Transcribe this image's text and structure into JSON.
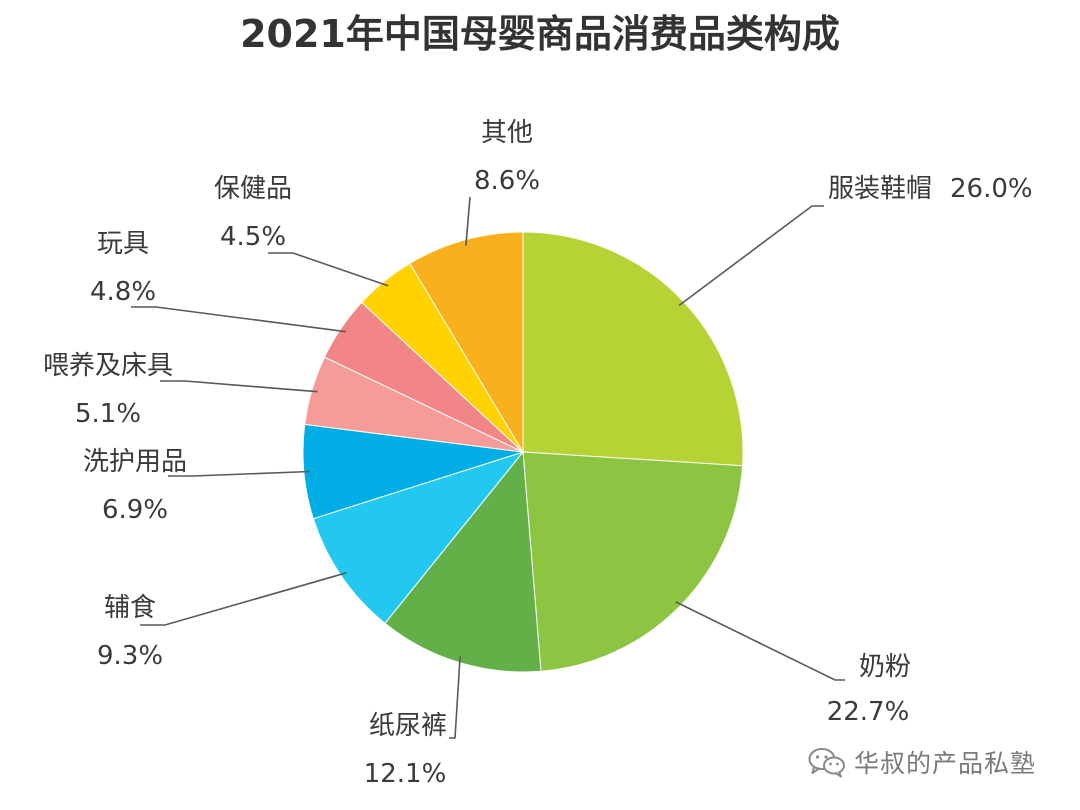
{
  "chart_data": {
    "type": "pie",
    "title": "2021年中国母婴商品消费品类构成",
    "unit": "%",
    "slices": [
      {
        "label": "服装鞋帽",
        "value": 26.0,
        "display": "26.0%",
        "color": "#b5d334"
      },
      {
        "label": "奶粉",
        "value": 22.7,
        "display": "22.7%",
        "color": "#8dc542"
      },
      {
        "label": "纸尿裤",
        "value": 12.1,
        "display": "12.1%",
        "color": "#62b047"
      },
      {
        "label": "辅食",
        "value": 9.3,
        "display": "9.3%",
        "color": "#22c8f0"
      },
      {
        "label": "洗护用品",
        "value": 6.9,
        "display": "6.9%",
        "color": "#00ade4"
      },
      {
        "label": "喂养及床具",
        "value": 5.1,
        "display": "5.1%",
        "color": "#f59c98"
      },
      {
        "label": "玩具",
        "value": 4.8,
        "display": "4.8%",
        "color": "#f28585"
      },
      {
        "label": "保健品",
        "value": 4.5,
        "display": "4.5%",
        "color": "#ffd200"
      },
      {
        "label": "其他",
        "value": 8.6,
        "display": "8.6%",
        "color": "#f8b01d"
      }
    ],
    "start_position": "12 o'clock",
    "direction": "clockwise"
  },
  "watermark": {
    "text": "华叔的产品私塾",
    "icon": "wechat-icon"
  }
}
